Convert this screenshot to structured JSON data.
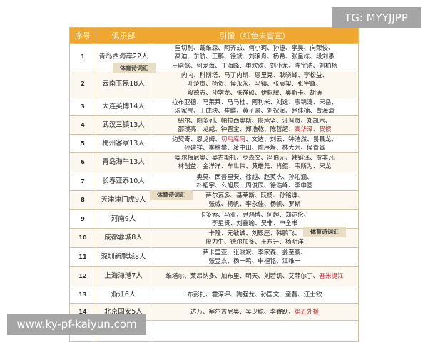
{
  "header": {
    "no": "序号",
    "club": "俱乐部",
    "signings": "引援（红色未官宣）"
  },
  "rows": [
    {
      "no": "1",
      "club": "青岛西海岸22人",
      "lines": [
        "里切利、戴维森、阿齐兹、何小珂、孙捷、李昊、向荣俊、",
        "高迪、东航、王鹏、徐斌、刘浪舟、杨希、张呈栋、段刘愚",
        "王晗懿、何龙海、丁海峰、单欢欢、刘小龙、陈宇浩、刘柏杨"
      ],
      "red": ""
    },
    {
      "no": "2",
      "club": "云南玉昆18人",
      "lines": [
        "内内、科斯塔、马丁内斯、恩里克、耿晓峰、李松益、",
        "叶楚贵、杨贺、侯永永、马镇、张宸梁、张宇峰、",
        "段德志、孙学龙、张祥硕、伊彪耀、奥斯卡、胡涛"
      ],
      "red": ""
    },
    {
      "no": "3",
      "club": "大连英博14人",
      "lines": [
        "拉布亚德、马莱莱、马马杜、阿利米、刘逸、廖锦涛、宋岳、",
        "温家宝、王成块、崔麒、黄子豪、刘祝润、赵佳楠、曹海清"
      ],
      "red": ""
    },
    {
      "no": "4",
      "club": "武汉三镇13人",
      "lines": [
        "绍尔、图多列、帕拉西奥斯、廖承坚、汪晋贤、郑凯木、",
        "邵璞亮、龙威、钟晋宝、郑浩乾、陈哲超、"
      ],
      "red": "高华泽、贺惯"
    },
    {
      "no": "5",
      "club": "梅州客家13人",
      "lines": [
        "约契奇、恩戈姆、",
        "、文达、刘云、钟浩然、易县龙、",
        "孙建祥、季胜攀、凌中田、陈序煌、林大为、侯青焱"
      ],
      "red": "切乌库阿"
    },
    {
      "no": "6",
      "club": "青岛海牛13人",
      "lines": [
        "奥尔梅尼奥、奥古斯托、罗森文、冯伯元、韩镕泽、贾非凡",
        "林创益、金洋洋、车世伟、黄皓隽、肖鲲、韦所为、宋龙"
      ],
      "red": ""
    },
    {
      "no": "7",
      "club": "长春亚泰10人",
      "lines": [
        "奥莫、西普里安、徐越、赵英杰、孙沁涵、",
        "朴韬宇、么旭辰、周俊辰、徐浩峰、李申圆"
      ],
      "red": ""
    },
    {
      "no": "8",
      "club": "天津津门虎9人",
      "lines": [
        "萨尔瓦多、基莱斯、阮杨、孙铭谦、",
        "张威、杨帆、李永佳、杨帆、罗斯"
      ],
      "red": ""
    },
    {
      "no": "9",
      "club": "河南9人",
      "lines": [
        "卡多索、马亚、尹鸿博、何超、郑达伦、",
        "李星贤、刘鑫瑜、吴非、申全书"
      ],
      "red": ""
    },
    {
      "no": "10",
      "club": "成都蓉城8人",
      "lines": [
        "卡隆、元敏诚、刘殿座、韩鹏飞、",
        "廖力生、德尔加多、王东升、杨明洋"
      ],
      "red": ""
    },
    {
      "no": "11",
      "club": "深圳新鹏城8人",
      "lines": [
        "萨卡里亚、张晓斌、李家森、姜至鹏、",
        "张昱杰、杨一鸣、申桓铭、江唯一"
      ],
      "red": ""
    },
    {
      "no": "12",
      "club": "上海海港7人",
      "lines": [
        "维塔尔、莱昂纳多、加布里、明天、刘若钒、艾菲尔丁、"
      ],
      "red": "吾米提江"
    },
    {
      "no": "13",
      "club": "浙江6人",
      "lines": [
        "布彭扎、霍深坪、陶强龙、孙国文、童磊、汪士钦"
      ],
      "red": ""
    },
    {
      "no": "14",
      "club": "北京国安5人",
      "lines": [
        "达万、塞尔吉尼奥、吴少聪、李睿跃、"
      ],
      "red": "第五外援"
    }
  ],
  "watermark": "体育诗词汇",
  "tg": "TG: MYYJJPP",
  "site": "www.ky-pf-kaiyun.com",
  "colors": {
    "header": "#f0a730",
    "red": "#c8313b"
  }
}
